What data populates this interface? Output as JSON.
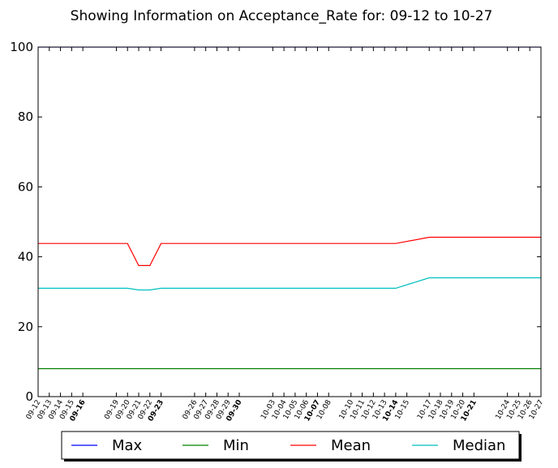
{
  "chart_data": {
    "type": "line",
    "title": "Showing Information on Acceptance_Rate for: 09-12 to 10-27",
    "xlabel": "",
    "ylabel": "",
    "ylim": [
      0,
      100
    ],
    "yticks": [
      0,
      20,
      40,
      60,
      80,
      100
    ],
    "x_range": [
      "09-12",
      "10-27"
    ],
    "xtick_labels": [
      {
        "label": "09-12",
        "day": 0,
        "bold": false
      },
      {
        "label": "09-13",
        "day": 1,
        "bold": false
      },
      {
        "label": "09-14",
        "day": 2,
        "bold": false
      },
      {
        "label": "09-15",
        "day": 3,
        "bold": false
      },
      {
        "label": "09-16",
        "day": 4,
        "bold": true
      },
      {
        "label": "09-19",
        "day": 7,
        "bold": false
      },
      {
        "label": "09-20",
        "day": 8,
        "bold": false
      },
      {
        "label": "09-21",
        "day": 9,
        "bold": false
      },
      {
        "label": "09-22",
        "day": 10,
        "bold": false
      },
      {
        "label": "09-23",
        "day": 11,
        "bold": true
      },
      {
        "label": "09-26",
        "day": 14,
        "bold": false
      },
      {
        "label": "09-27",
        "day": 15,
        "bold": false
      },
      {
        "label": "09-28",
        "day": 16,
        "bold": false
      },
      {
        "label": "09-29",
        "day": 17,
        "bold": false
      },
      {
        "label": "09-30",
        "day": 18,
        "bold": true
      },
      {
        "label": "10-03",
        "day": 21,
        "bold": false
      },
      {
        "label": "10-04",
        "day": 22,
        "bold": false
      },
      {
        "label": "10-05",
        "day": 23,
        "bold": false
      },
      {
        "label": "10-06",
        "day": 24,
        "bold": false
      },
      {
        "label": "10-07",
        "day": 25,
        "bold": true
      },
      {
        "label": "10-08",
        "day": 26,
        "bold": false
      },
      {
        "label": "10-10",
        "day": 28,
        "bold": false
      },
      {
        "label": "10-11",
        "day": 29,
        "bold": false
      },
      {
        "label": "10-12",
        "day": 30,
        "bold": false
      },
      {
        "label": "10-13",
        "day": 31,
        "bold": false
      },
      {
        "label": "10-14",
        "day": 32,
        "bold": true
      },
      {
        "label": "10-15",
        "day": 33,
        "bold": false
      },
      {
        "label": "10-17",
        "day": 35,
        "bold": false
      },
      {
        "label": "10-18",
        "day": 36,
        "bold": false
      },
      {
        "label": "10-19",
        "day": 37,
        "bold": false
      },
      {
        "label": "10-20",
        "day": 38,
        "bold": false
      },
      {
        "label": "10-21",
        "day": 39,
        "bold": true
      },
      {
        "label": "10-24",
        "day": 42,
        "bold": false
      },
      {
        "label": "10-25",
        "day": 43,
        "bold": false
      },
      {
        "label": "10-26",
        "day": 44,
        "bold": false
      },
      {
        "label": "10-27",
        "day": 45,
        "bold": false
      }
    ],
    "legend_position": "bottom",
    "series": [
      {
        "name": "Max",
        "color": "#0000ff",
        "points": [
          [
            0,
            100
          ],
          [
            45,
            100
          ]
        ]
      },
      {
        "name": "Min",
        "color": "#008000",
        "points": [
          [
            0,
            8
          ],
          [
            45,
            8
          ]
        ]
      },
      {
        "name": "Mean",
        "color": "#ff0000",
        "points": [
          [
            0,
            43.8
          ],
          [
            8,
            43.8
          ],
          [
            9,
            37.5
          ],
          [
            10,
            37.5
          ],
          [
            11,
            43.8
          ],
          [
            32,
            43.8
          ],
          [
            35,
            45.6
          ],
          [
            45,
            45.6
          ]
        ]
      },
      {
        "name": "Median",
        "color": "#00bfbf",
        "points": [
          [
            0,
            31
          ],
          [
            8,
            31
          ],
          [
            9,
            30.5
          ],
          [
            10,
            30.5
          ],
          [
            11,
            31
          ],
          [
            32,
            31
          ],
          [
            35,
            34
          ],
          [
            45,
            34
          ]
        ]
      }
    ]
  }
}
